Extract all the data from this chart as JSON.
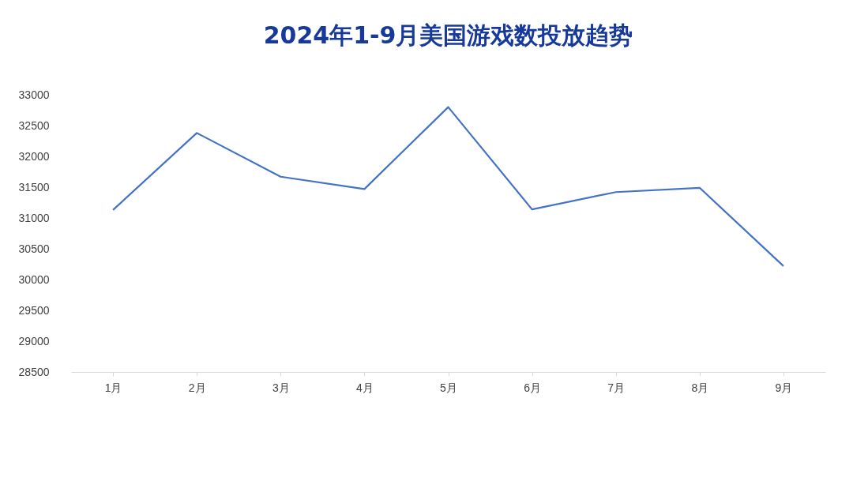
{
  "chart_data": {
    "type": "line",
    "title": "2024年1-9月美国游戏数投放趋势",
    "categories": [
      "1月",
      "2月",
      "3月",
      "4月",
      "5月",
      "6月",
      "7月",
      "8月",
      "9月"
    ],
    "series": [
      {
        "color": "#4472c4",
        "values": [
          31130,
          32380,
          31670,
          31470,
          32800,
          31140,
          31420,
          31490,
          30220
        ]
      }
    ],
    "ylim": [
      28500,
      33000
    ],
    "yticks": [
      28500,
      29000,
      29500,
      30000,
      30500,
      31000,
      31500,
      32000,
      32500,
      33000
    ],
    "grid": false,
    "marker": "none",
    "line_style": "solid"
  }
}
